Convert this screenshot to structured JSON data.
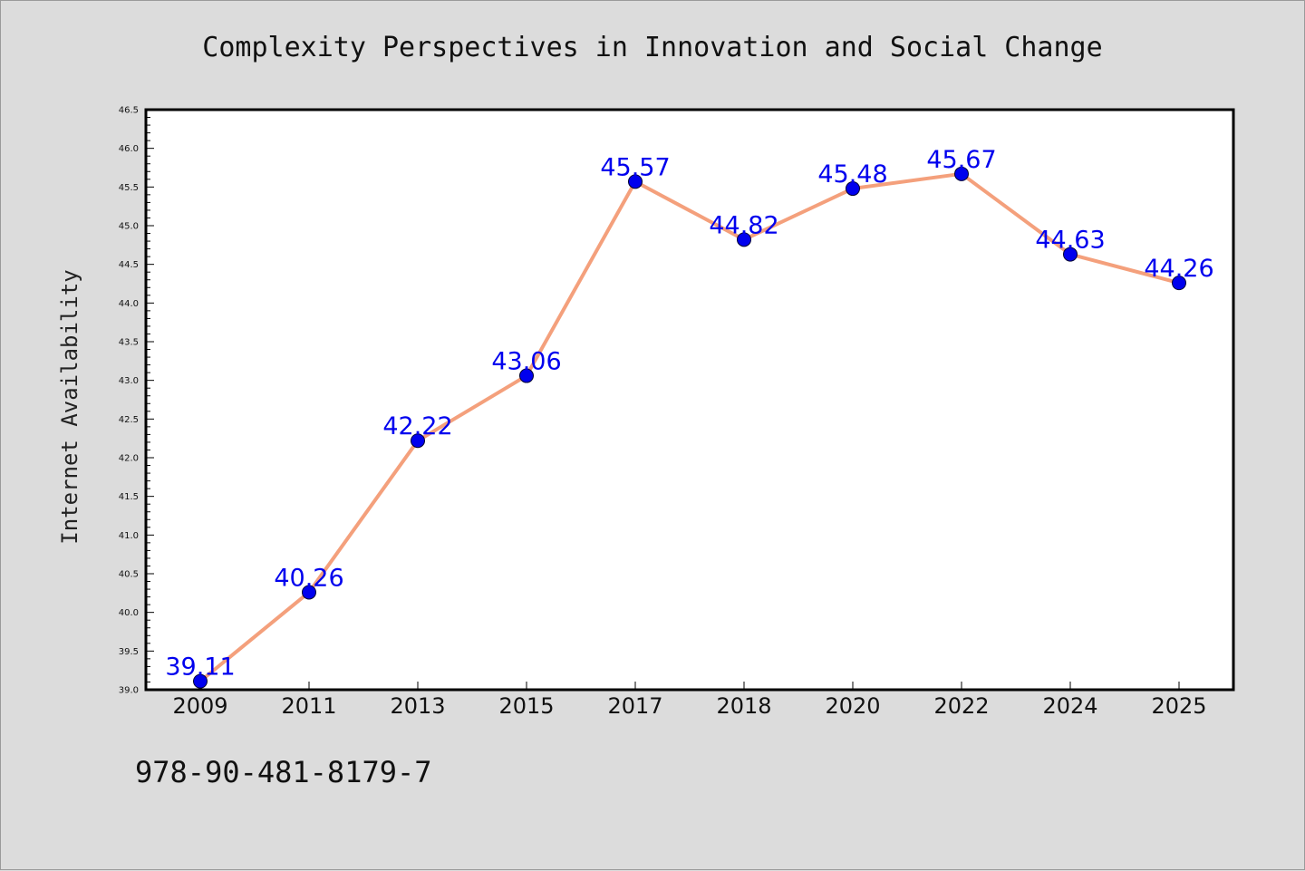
{
  "chart_data": {
    "type": "line",
    "title": "Complexity Perspectives in Innovation and Social Change",
    "xlabel": "",
    "ylabel": "Internet Availability",
    "categories": [
      "2009",
      "2011",
      "2013",
      "2015",
      "2017",
      "2018",
      "2020",
      "2022",
      "2024",
      "2025"
    ],
    "series": [
      {
        "values": [
          39.11,
          40.26,
          42.22,
          43.06,
          45.57,
          44.82,
          45.48,
          45.67,
          44.63,
          44.26
        ]
      }
    ],
    "data_labels": [
      "39.11",
      "40.26",
      "42.22",
      "43.06",
      "45.57",
      "44.82",
      "45.48",
      "45.67",
      "44.63",
      "44.26"
    ],
    "ylim": [
      39.0,
      46.5
    ],
    "yticks": [
      "39.0",
      "39.5",
      "40.0",
      "40.5",
      "41.0",
      "41.5",
      "42.0",
      "42.5",
      "43.0",
      "43.5",
      "44.0",
      "44.5",
      "45.0",
      "45.5",
      "46.0",
      "46.5"
    ],
    "grid": false,
    "legend": "none",
    "colors": {
      "line": "#f4a07c",
      "marker": "#0000ee",
      "label": "#0000ee",
      "plot_bg": "#ffffff",
      "figure_bg": "#dcdcdc"
    }
  },
  "footer": {
    "isbn": "978-90-481-8179-7"
  }
}
